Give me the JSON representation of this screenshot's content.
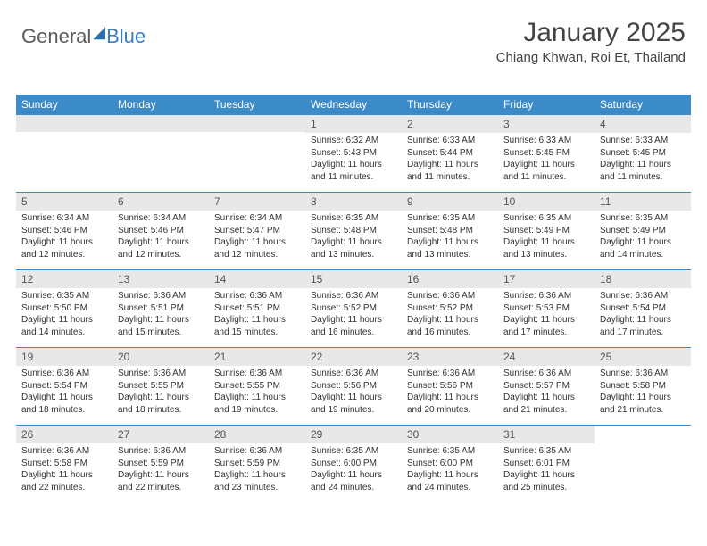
{
  "brand": {
    "part1": "General",
    "part2": "Blue"
  },
  "title": "January 2025",
  "location": "Chiang Khwan, Roi Et, Thailand",
  "colors": {
    "header_blue": "#3b8bc9",
    "day_header_gray": "#e8e8e8",
    "border_blue": "#3b8bc9",
    "text_dark": "#333333",
    "text_muted": "#555555",
    "logo_gray": "#5a5a5a",
    "logo_blue": "#3b7dbf",
    "background": "#ffffff"
  },
  "typography": {
    "title_fontsize": 30,
    "location_fontsize": 15,
    "weekday_fontsize": 12,
    "daynum_fontsize": 12,
    "body_fontsize": 10
  },
  "weekdays": [
    "Sunday",
    "Monday",
    "Tuesday",
    "Wednesday",
    "Thursday",
    "Friday",
    "Saturday"
  ],
  "weeks": [
    [
      null,
      null,
      null,
      {
        "n": "1",
        "sunrise": "6:32 AM",
        "sunset": "5:43 PM",
        "day_h": "11",
        "day_m": "11"
      },
      {
        "n": "2",
        "sunrise": "6:33 AM",
        "sunset": "5:44 PM",
        "day_h": "11",
        "day_m": "11"
      },
      {
        "n": "3",
        "sunrise": "6:33 AM",
        "sunset": "5:45 PM",
        "day_h": "11",
        "day_m": "11"
      },
      {
        "n": "4",
        "sunrise": "6:33 AM",
        "sunset": "5:45 PM",
        "day_h": "11",
        "day_m": "11"
      }
    ],
    [
      {
        "n": "5",
        "sunrise": "6:34 AM",
        "sunset": "5:46 PM",
        "day_h": "11",
        "day_m": "12"
      },
      {
        "n": "6",
        "sunrise": "6:34 AM",
        "sunset": "5:46 PM",
        "day_h": "11",
        "day_m": "12"
      },
      {
        "n": "7",
        "sunrise": "6:34 AM",
        "sunset": "5:47 PM",
        "day_h": "11",
        "day_m": "12"
      },
      {
        "n": "8",
        "sunrise": "6:35 AM",
        "sunset": "5:48 PM",
        "day_h": "11",
        "day_m": "13"
      },
      {
        "n": "9",
        "sunrise": "6:35 AM",
        "sunset": "5:48 PM",
        "day_h": "11",
        "day_m": "13"
      },
      {
        "n": "10",
        "sunrise": "6:35 AM",
        "sunset": "5:49 PM",
        "day_h": "11",
        "day_m": "13"
      },
      {
        "n": "11",
        "sunrise": "6:35 AM",
        "sunset": "5:49 PM",
        "day_h": "11",
        "day_m": "14"
      }
    ],
    [
      {
        "n": "12",
        "sunrise": "6:35 AM",
        "sunset": "5:50 PM",
        "day_h": "11",
        "day_m": "14"
      },
      {
        "n": "13",
        "sunrise": "6:36 AM",
        "sunset": "5:51 PM",
        "day_h": "11",
        "day_m": "15"
      },
      {
        "n": "14",
        "sunrise": "6:36 AM",
        "sunset": "5:51 PM",
        "day_h": "11",
        "day_m": "15"
      },
      {
        "n": "15",
        "sunrise": "6:36 AM",
        "sunset": "5:52 PM",
        "day_h": "11",
        "day_m": "16"
      },
      {
        "n": "16",
        "sunrise": "6:36 AM",
        "sunset": "5:52 PM",
        "day_h": "11",
        "day_m": "16"
      },
      {
        "n": "17",
        "sunrise": "6:36 AM",
        "sunset": "5:53 PM",
        "day_h": "11",
        "day_m": "17"
      },
      {
        "n": "18",
        "sunrise": "6:36 AM",
        "sunset": "5:54 PM",
        "day_h": "11",
        "day_m": "17"
      }
    ],
    [
      {
        "n": "19",
        "sunrise": "6:36 AM",
        "sunset": "5:54 PM",
        "day_h": "11",
        "day_m": "18"
      },
      {
        "n": "20",
        "sunrise": "6:36 AM",
        "sunset": "5:55 PM",
        "day_h": "11",
        "day_m": "18"
      },
      {
        "n": "21",
        "sunrise": "6:36 AM",
        "sunset": "5:55 PM",
        "day_h": "11",
        "day_m": "19"
      },
      {
        "n": "22",
        "sunrise": "6:36 AM",
        "sunset": "5:56 PM",
        "day_h": "11",
        "day_m": "19"
      },
      {
        "n": "23",
        "sunrise": "6:36 AM",
        "sunset": "5:56 PM",
        "day_h": "11",
        "day_m": "20"
      },
      {
        "n": "24",
        "sunrise": "6:36 AM",
        "sunset": "5:57 PM",
        "day_h": "11",
        "day_m": "21"
      },
      {
        "n": "25",
        "sunrise": "6:36 AM",
        "sunset": "5:58 PM",
        "day_h": "11",
        "day_m": "21"
      }
    ],
    [
      {
        "n": "26",
        "sunrise": "6:36 AM",
        "sunset": "5:58 PM",
        "day_h": "11",
        "day_m": "22"
      },
      {
        "n": "27",
        "sunrise": "6:36 AM",
        "sunset": "5:59 PM",
        "day_h": "11",
        "day_m": "22"
      },
      {
        "n": "28",
        "sunrise": "6:36 AM",
        "sunset": "5:59 PM",
        "day_h": "11",
        "day_m": "23"
      },
      {
        "n": "29",
        "sunrise": "6:35 AM",
        "sunset": "6:00 PM",
        "day_h": "11",
        "day_m": "24"
      },
      {
        "n": "30",
        "sunrise": "6:35 AM",
        "sunset": "6:00 PM",
        "day_h": "11",
        "day_m": "24"
      },
      {
        "n": "31",
        "sunrise": "6:35 AM",
        "sunset": "6:01 PM",
        "day_h": "11",
        "day_m": "25"
      },
      null
    ]
  ],
  "labels": {
    "sunrise": "Sunrise:",
    "sunset": "Sunset:",
    "daylight": "Daylight:",
    "hours": "hours",
    "and": "and",
    "minutes": "minutes."
  }
}
